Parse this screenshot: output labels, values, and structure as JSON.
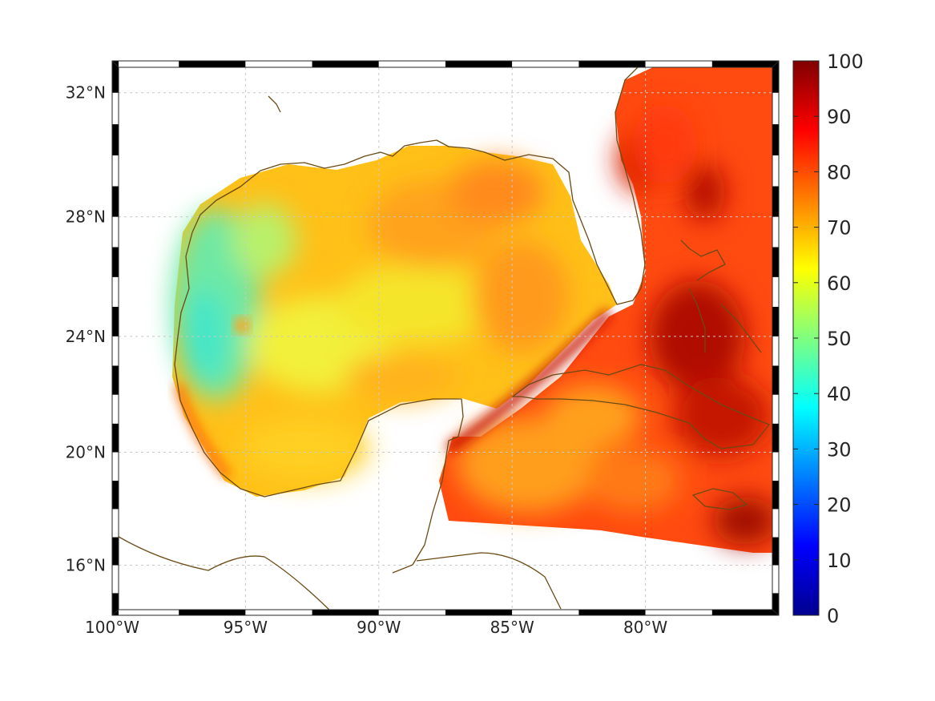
{
  "map": {
    "type": "heatmap",
    "projection": "mercator",
    "lon_range": [
      -100,
      -75
    ],
    "lat_range": [
      14.2,
      33
    ],
    "grid": true,
    "coastline_color": "#6b4a14",
    "frame_stripe_colors": [
      "#000000",
      "#ffffff"
    ],
    "lon_ticks": [
      -100,
      -95,
      -90,
      -85,
      -80
    ],
    "lon_tick_labels": [
      "100°W",
      "95°W",
      "90°W",
      "85°W",
      "80°W"
    ],
    "lat_ticks": [
      16,
      20,
      24,
      28,
      32
    ],
    "lat_tick_labels": [
      "16°N",
      "20°N",
      "24°N",
      "28°N",
      "32°N"
    ]
  },
  "colorbar": {
    "colormap": "jet",
    "range": [
      0,
      100
    ],
    "ticks": [
      0,
      10,
      20,
      30,
      40,
      50,
      60,
      70,
      80,
      90,
      100
    ],
    "tick_labels": [
      "0",
      "10",
      "20",
      "30",
      "40",
      "50",
      "60",
      "70",
      "80",
      "90",
      "100"
    ],
    "location": "right"
  },
  "chart_data": {
    "type": "heatmap",
    "x_units": "degrees longitude",
    "y_units": "degrees latitude",
    "value_range": [
      0,
      100
    ],
    "approximate_regions": [
      {
        "region": "western Gulf of Mexico shelf",
        "lon": -96,
        "lat": 25,
        "value": 45
      },
      {
        "region": "central Gulf of Mexico",
        "lon": -90,
        "lat": 26,
        "value": 68
      },
      {
        "region": "eastern Gulf of Mexico",
        "lon": -85,
        "lat": 26,
        "value": 74
      },
      {
        "region": "Bay of Campeche",
        "lon": -94,
        "lat": 20,
        "value": 66
      },
      {
        "region": "Florida Straits",
        "lon": -82,
        "lat": 24,
        "value": 90
      },
      {
        "region": "Atlantic off Florida",
        "lon": -79,
        "lat": 29,
        "value": 88
      },
      {
        "region": "Bahamas",
        "lon": -77,
        "lat": 24.5,
        "value": 95
      },
      {
        "region": "northwest Caribbean",
        "lon": -84,
        "lat": 19,
        "value": 76
      },
      {
        "region": "Caribbean south of Cuba",
        "lon": -80,
        "lat": 19,
        "value": 82
      },
      {
        "region": "near Jamaica",
        "lon": -77,
        "lat": 17,
        "value": 93
      }
    ]
  }
}
